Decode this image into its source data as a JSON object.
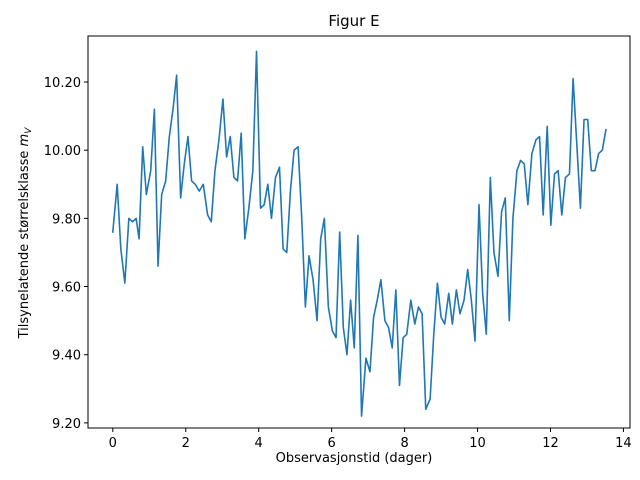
{
  "chart_data": {
    "type": "line",
    "title": "Figur E",
    "xlabel": "Observasjonstid (dager)",
    "ylabel_main": "Tilsynelatende størrelsklasse ",
    "ylabel_symbol": "m",
    "ylabel_subscript": "V",
    "xlim": [
      -0.68,
      14.18
    ],
    "ylim": [
      9.185,
      10.335
    ],
    "xticks": [
      0,
      2,
      4,
      6,
      8,
      10,
      12,
      14
    ],
    "xtick_labels": [
      "0",
      "2",
      "4",
      "6",
      "8",
      "10",
      "12",
      "14"
    ],
    "yticks": [
      9.2,
      9.4,
      9.6,
      9.8,
      10.0,
      10.2
    ],
    "ytick_labels": [
      "9.20",
      "9.40",
      "9.60",
      "9.80",
      "10.00",
      "10.20"
    ],
    "line_color": "#1f77b4",
    "series": [
      {
        "x": [
          0.0,
          0.12,
          0.22,
          0.33,
          0.44,
          0.54,
          0.64,
          0.72,
          0.82,
          0.92,
          1.04,
          1.14,
          1.24,
          1.34,
          1.45,
          1.55,
          1.65,
          1.75,
          1.86,
          1.96,
          2.06,
          2.16,
          2.26,
          2.37,
          2.48,
          2.6,
          2.7,
          2.8,
          2.91,
          3.02,
          3.12,
          3.22,
          3.32,
          3.42,
          3.52,
          3.62,
          3.73,
          3.84,
          3.94,
          4.05,
          4.15,
          4.25,
          4.35,
          4.46,
          4.57,
          4.67,
          4.77,
          4.87,
          4.97,
          5.08,
          5.18,
          5.28,
          5.38,
          5.49,
          5.6,
          5.7,
          5.8,
          5.91,
          6.02,
          6.12,
          6.22,
          6.32,
          6.42,
          6.52,
          6.62,
          6.72,
          6.82,
          6.94,
          7.05,
          7.15,
          7.25,
          7.35,
          7.46,
          7.56,
          7.66,
          7.76,
          7.86,
          7.96,
          8.06,
          8.17,
          8.28,
          8.38,
          8.48,
          8.58,
          8.7,
          8.8,
          8.9,
          9.0,
          9.1,
          9.21,
          9.31,
          9.42,
          9.52,
          9.63,
          9.73,
          9.83,
          9.93,
          10.04,
          10.14,
          10.24,
          10.35,
          10.45,
          10.56,
          10.66,
          10.76,
          10.87,
          10.97,
          11.08,
          11.18,
          11.28,
          11.38,
          11.49,
          11.6,
          11.7,
          11.8,
          11.91,
          12.01,
          12.11,
          12.21,
          12.31,
          12.41,
          12.52,
          12.62,
          12.72,
          12.82,
          12.92,
          13.02,
          13.12,
          13.22,
          13.32,
          13.42,
          13.52
        ],
        "y": [
          9.76,
          9.9,
          9.71,
          9.61,
          9.8,
          9.79,
          9.8,
          9.74,
          10.01,
          9.87,
          9.94,
          10.12,
          9.66,
          9.87,
          9.91,
          10.04,
          10.12,
          10.22,
          9.86,
          9.96,
          10.04,
          9.91,
          9.9,
          9.88,
          9.9,
          9.81,
          9.79,
          9.94,
          10.03,
          10.15,
          9.98,
          10.04,
          9.92,
          9.91,
          10.05,
          9.74,
          9.83,
          9.94,
          10.29,
          9.83,
          9.84,
          9.9,
          9.8,
          9.92,
          9.95,
          9.71,
          9.7,
          9.88,
          10.0,
          10.01,
          9.8,
          9.54,
          9.69,
          9.62,
          9.5,
          9.74,
          9.8,
          9.54,
          9.47,
          9.45,
          9.76,
          9.48,
          9.4,
          9.56,
          9.42,
          9.75,
          9.22,
          9.39,
          9.35,
          9.51,
          9.56,
          9.62,
          9.5,
          9.48,
          9.42,
          9.59,
          9.31,
          9.45,
          9.46,
          9.56,
          9.49,
          9.54,
          9.52,
          9.24,
          9.27,
          9.46,
          9.61,
          9.51,
          9.49,
          9.58,
          9.49,
          9.59,
          9.52,
          9.56,
          9.65,
          9.56,
          9.44,
          9.84,
          9.58,
          9.46,
          9.92,
          9.7,
          9.63,
          9.82,
          9.86,
          9.5,
          9.8,
          9.94,
          9.97,
          9.96,
          9.84,
          9.99,
          10.03,
          10.04,
          9.81,
          10.07,
          9.78,
          9.93,
          9.94,
          9.81,
          9.92,
          9.93,
          10.21,
          10.02,
          9.83,
          10.09,
          10.09,
          9.94,
          9.94,
          9.99,
          10.0,
          10.06
        ]
      }
    ]
  }
}
